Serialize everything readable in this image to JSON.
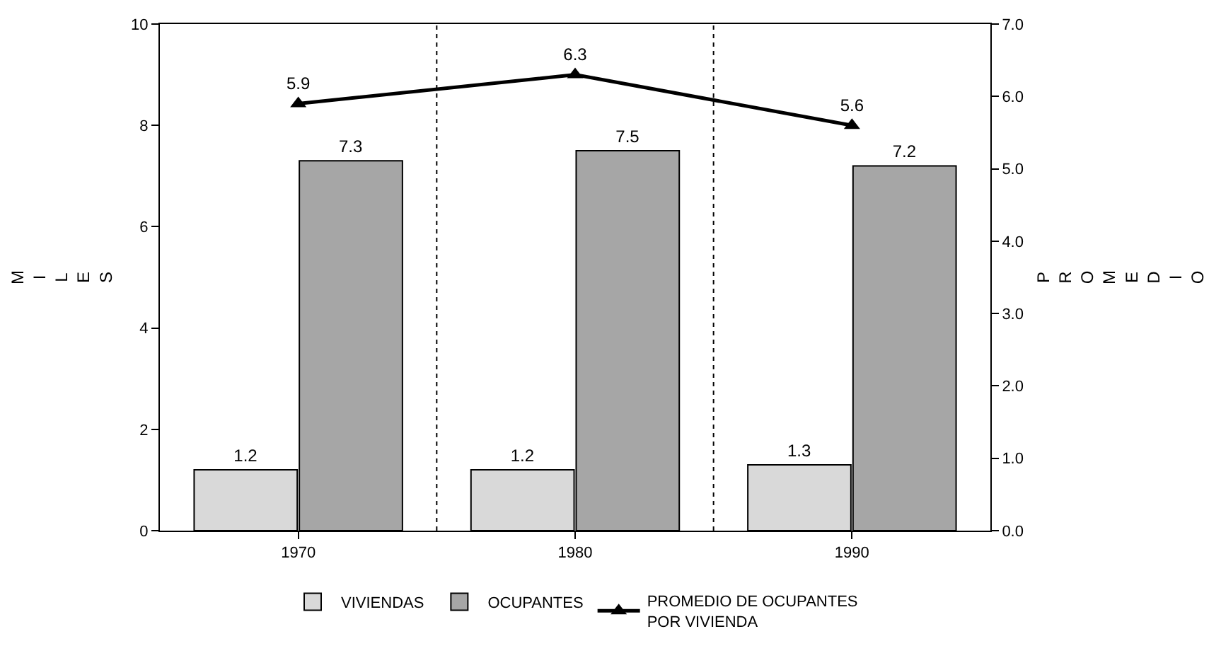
{
  "chart_data": {
    "type": "bar",
    "x": [
      1970,
      1980,
      1990
    ],
    "xlim": [
      1965,
      1995
    ],
    "xticks": [
      1970,
      1980,
      1990
    ],
    "ylabel": "MILES",
    "y2label": "PROMEDIO",
    "ylim": [
      0,
      10
    ],
    "yticks": [
      0,
      2,
      4,
      6,
      8,
      10
    ],
    "y2lim": [
      0,
      7
    ],
    "y2ticks": [
      {
        "value": 0,
        "label": "0.0"
      },
      {
        "value": 1,
        "label": "1.0"
      },
      {
        "value": 2,
        "label": "2.0"
      },
      {
        "value": 3,
        "label": "3.0"
      },
      {
        "value": 4,
        "label": "4.0"
      },
      {
        "value": 5,
        "label": "5.0"
      },
      {
        "value": 6,
        "label": "6.0"
      },
      {
        "value": 7,
        "label": "7.0"
      }
    ],
    "series": [
      {
        "name": "VIVIENDAS",
        "color": "#d9d9d9",
        "values": [
          1.2,
          1.2,
          1.3
        ]
      },
      {
        "name": "OCUPANTES",
        "color": "#a6a6a6",
        "values": [
          7.3,
          7.5,
          7.2
        ]
      },
      {
        "name": "PROMEDIO DE OCUPANTES\nPOR VIVIENDA",
        "type": "line",
        "axis": "y2",
        "color": "#000000",
        "marker": "triangle",
        "line_style": "solid",
        "values": [
          5.9,
          6.3,
          5.6
        ]
      }
    ],
    "ref_lines": [
      {
        "axis": "x",
        "value": 1975,
        "line_style": "dotted",
        "color": "#000000"
      },
      {
        "axis": "x",
        "value": 1985,
        "line_style": "dotted",
        "color": "#000000"
      }
    ],
    "data_labels": true,
    "legend": "bottom"
  }
}
